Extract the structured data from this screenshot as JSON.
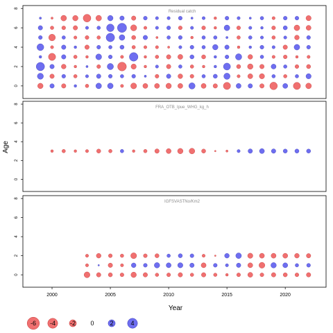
{
  "chart_data": {
    "type": "scatter",
    "xlabel": "Year",
    "ylabel": "Age",
    "xlim": [
      1997.5,
      2023.5
    ],
    "xticks": [
      2000,
      2005,
      2010,
      2015,
      2020
    ],
    "ylim": [
      -1.3,
      8.3
    ],
    "yticks": [
      0,
      2,
      4,
      6,
      8
    ],
    "encoding": "bubble area proportional to |residual|; red = negative, blue = positive",
    "colors": {
      "negative": "#f07070",
      "positive": "#6e6ef0"
    },
    "legend": {
      "placement": "bottom-left",
      "labels": [
        "-6",
        "-4",
        "-2",
        "0",
        "2",
        "4"
      ],
      "values": [
        -6,
        -4,
        -2,
        0,
        2,
        4
      ]
    },
    "panels": [
      {
        "title": "Residual catch",
        "years": [
          1999,
          2000,
          2001,
          2002,
          2003,
          2004,
          2005,
          2006,
          2007,
          2008,
          2009,
          2010,
          2011,
          2012,
          2013,
          2014,
          2015,
          2016,
          2017,
          2018,
          2019,
          2020,
          2021,
          2022
        ],
        "ages": [
          0,
          1,
          2,
          3,
          4,
          5,
          6,
          7
        ],
        "residuals": [
          [
            -1.2,
            0.8,
            -0.8,
            0.3,
            -0.5,
            1.3,
            1.3,
            -0.4,
            -1.4,
            -1.0,
            -1.0,
            -1.2,
            -1.0,
            1.6,
            -1.0,
            -0.8,
            -2.1,
            1.0,
            0.8,
            -0.8,
            -2.3,
            1.0,
            -2.1,
            -1.3
          ],
          [
            1.5,
            -0.8,
            0.6,
            -0.5,
            0.4,
            0.8,
            0.6,
            0.5,
            0.6,
            0.2,
            -0.6,
            0.8,
            -0.9,
            -0.6,
            0.5,
            0.7,
            1.6,
            -0.4,
            -1.0,
            -1.1,
            0.5,
            -0.5,
            0.5,
            1.1
          ],
          [
            2.8,
            0.8,
            -0.9,
            -0.3,
            0.2,
            -0.6,
            1.6,
            -3.1,
            -1.1,
            -0.3,
            0.4,
            -0.8,
            0.5,
            -0.5,
            -0.3,
            0.3,
            2.0,
            -0.7,
            -1.2,
            -0.8,
            1.0,
            0.5,
            -0.6,
            -0.7
          ],
          [
            0.3,
            -2.1,
            0.8,
            -0.5,
            -0.3,
            1.4,
            0.6,
            -0.4,
            3.0,
            -0.3,
            -0.5,
            -0.8,
            -1.0,
            0.7,
            -0.7,
            0.3,
            0.6,
            1.6,
            -0.9,
            0.5,
            -0.4,
            -0.6,
            -0.3,
            -0.4
          ],
          [
            1.9,
            -0.4,
            0.8,
            0.3,
            -0.8,
            0.6,
            0.5,
            0.7,
            -0.5,
            -0.4,
            -0.4,
            -0.2,
            0.4,
            0.6,
            0.5,
            1.2,
            0.8,
            -0.3,
            0.3,
            0.6,
            0.4,
            -0.8,
            1.3,
            0.6
          ],
          [
            0.6,
            -1.8,
            0.5,
            -0.4,
            -0.6,
            -0.5,
            2.9,
            1.3,
            -0.7,
            0.8,
            -0.2,
            0.5,
            0.6,
            -0.3,
            0.5,
            0.5,
            0.2,
            -0.5,
            0.5,
            0.4,
            -0.5,
            0.4,
            -0.9,
            0.6
          ],
          [
            0.8,
            -0.5,
            -0.6,
            -0.8,
            0.4,
            0.5,
            2.3,
            3.4,
            -1.5,
            -0.4,
            0.4,
            0.6,
            -0.6,
            0.4,
            -0.6,
            -0.3,
            1.3,
            -0.6,
            0.4,
            0.3,
            -0.6,
            0.7,
            -1.3,
            -1.0
          ],
          [
            0.2,
            -0.2,
            -1.3,
            -1.2,
            -2.4,
            -1.3,
            1.2,
            0.8,
            -0.8,
            0.6,
            0.4,
            0.4,
            0.6,
            0.2,
            0.4,
            -0.3,
            0.6,
            0.4,
            0.2,
            0.5,
            -0.4,
            0.6,
            0.6,
            -1.1
          ]
        ]
      },
      {
        "title": "FRA_OTB_lpue_WHG_kg_h",
        "years": [
          2000,
          2001,
          2002,
          2003,
          2004,
          2005,
          2006,
          2007,
          2008,
          2009,
          2010,
          2011,
          2012,
          2013,
          2014,
          2015,
          2016,
          2017,
          2018,
          2019,
          2020,
          2021,
          2022
        ],
        "ages": [
          3
        ],
        "residuals": [
          [
            -0.3,
            -0.5,
            -0.3,
            -0.4,
            -0.7,
            -0.5,
            0.5,
            -0.3,
            -0.5,
            -0.8,
            -1.0,
            -1.2,
            -1.3,
            -0.7,
            -0.1,
            -0.2,
            0.4,
            0.8,
            1.0,
            0.8,
            0.7,
            0.7,
            0.7
          ]
        ]
      },
      {
        "title": "IGFSVASTNo/Km2",
        "years": [
          2003,
          2004,
          2005,
          2006,
          2007,
          2008,
          2009,
          2010,
          2011,
          2012,
          2013,
          2014,
          2015,
          2016,
          2017,
          2018,
          2019,
          2020,
          2021,
          2022
        ],
        "ages": [
          0,
          1,
          2
        ],
        "residuals": [
          [
            -1.4,
            -0.8,
            -0.7,
            -0.6,
            -1.2,
            -0.8,
            -0.5,
            -0.6,
            -0.8,
            -0.5,
            -0.8,
            -0.5,
            -0.3,
            -0.6,
            -1.0,
            -0.6,
            -0.8,
            -0.7,
            -0.6,
            -0.8
          ],
          [
            -0.4,
            0.1,
            -0.8,
            -0.4,
            0.9,
            0.6,
            1.2,
            1.0,
            1.1,
            0.8,
            -1.0,
            0.6,
            0.4,
            0.8,
            -1.0,
            -1.4,
            1.2,
            1.0,
            0.5,
            0.6
          ],
          [
            -0.4,
            -0.9,
            -0.6,
            -0.5,
            -1.4,
            -0.6,
            -0.7,
            0.5,
            0.7,
            0.6,
            -0.4,
            -0.1,
            0.9,
            1.3,
            -1.1,
            -1.0,
            -1.0,
            -1.0,
            -0.9,
            -0.8
          ]
        ]
      }
    ]
  }
}
